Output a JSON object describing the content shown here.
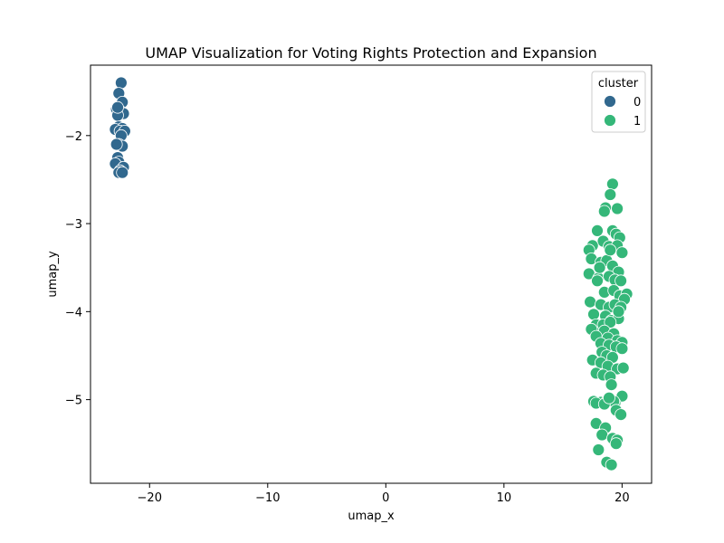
{
  "chart_data": {
    "type": "scatter",
    "title": "UMAP Visualization for Voting Rights Protection and Expansion",
    "xlabel": "umap_x",
    "ylabel": "umap_y",
    "xlim": [
      -25,
      22.5
    ],
    "ylim": [
      -5.95,
      -1.2
    ],
    "xticks": [
      -20,
      -10,
      0,
      10,
      20
    ],
    "yticks": [
      -5,
      -4,
      -3,
      -2
    ],
    "grid": false,
    "legend": {
      "title": "cluster",
      "placement": "top-right"
    },
    "colors": {
      "0": "#31688e",
      "1": "#35b779"
    },
    "series": [
      {
        "name": "0",
        "points": [
          [
            -22.4,
            -1.4
          ],
          [
            -22.6,
            -1.52
          ],
          [
            -22.3,
            -1.62
          ],
          [
            -22.8,
            -1.7
          ],
          [
            -22.5,
            -1.72
          ],
          [
            -22.2,
            -1.75
          ],
          [
            -22.7,
            -1.77
          ],
          [
            -22.6,
            -1.9
          ],
          [
            -22.3,
            -1.92
          ],
          [
            -22.9,
            -1.93
          ],
          [
            -22.5,
            -1.95
          ],
          [
            -22.1,
            -1.95
          ],
          [
            -22.4,
            -2.0
          ],
          [
            -22.6,
            -2.1
          ],
          [
            -22.3,
            -2.12
          ],
          [
            -22.8,
            -2.1
          ],
          [
            -22.7,
            -2.25
          ],
          [
            -22.6,
            -2.3
          ],
          [
            -22.9,
            -2.32
          ],
          [
            -22.2,
            -2.36
          ],
          [
            -22.5,
            -2.4
          ],
          [
            -22.6,
            -2.42
          ],
          [
            -22.3,
            -2.42
          ],
          [
            -22.7,
            -1.68
          ]
        ]
      },
      {
        "name": "1",
        "points": [
          [
            19.2,
            -2.55
          ],
          [
            19.0,
            -2.67
          ],
          [
            18.6,
            -2.82
          ],
          [
            19.6,
            -2.83
          ],
          [
            18.5,
            -2.86
          ],
          [
            17.9,
            -3.08
          ],
          [
            19.2,
            -3.08
          ],
          [
            19.5,
            -3.12
          ],
          [
            18.4,
            -3.2
          ],
          [
            19.8,
            -3.16
          ],
          [
            17.5,
            -3.25
          ],
          [
            17.2,
            -3.3
          ],
          [
            18.9,
            -3.26
          ],
          [
            19.6,
            -3.25
          ],
          [
            20.0,
            -3.33
          ],
          [
            17.4,
            -3.4
          ],
          [
            18.2,
            -3.44
          ],
          [
            18.7,
            -3.42
          ],
          [
            19.2,
            -3.48
          ],
          [
            19.7,
            -3.55
          ],
          [
            17.2,
            -3.57
          ],
          [
            18.0,
            -3.62
          ],
          [
            18.9,
            -3.6
          ],
          [
            19.4,
            -3.64
          ],
          [
            19.9,
            -3.65
          ],
          [
            17.9,
            -3.65
          ],
          [
            18.5,
            -3.78
          ],
          [
            19.3,
            -3.76
          ],
          [
            19.8,
            -3.82
          ],
          [
            20.4,
            -3.8
          ],
          [
            20.2,
            -3.86
          ],
          [
            17.3,
            -3.89
          ],
          [
            18.2,
            -3.92
          ],
          [
            18.9,
            -3.95
          ],
          [
            19.4,
            -3.92
          ],
          [
            19.9,
            -3.95
          ],
          [
            17.6,
            -4.03
          ],
          [
            18.6,
            -4.05
          ],
          [
            19.1,
            -4.1
          ],
          [
            19.7,
            -4.08
          ],
          [
            17.8,
            -4.15
          ],
          [
            18.4,
            -4.15
          ],
          [
            19.0,
            -4.12
          ],
          [
            17.4,
            -4.2
          ],
          [
            18.5,
            -4.22
          ],
          [
            19.3,
            -4.25
          ],
          [
            17.8,
            -4.28
          ],
          [
            18.8,
            -4.3
          ],
          [
            19.6,
            -4.33
          ],
          [
            20.0,
            -4.35
          ],
          [
            18.2,
            -4.36
          ],
          [
            18.9,
            -4.38
          ],
          [
            19.5,
            -4.4
          ],
          [
            20.0,
            -4.42
          ],
          [
            18.3,
            -4.46
          ],
          [
            18.7,
            -4.5
          ],
          [
            19.2,
            -4.52
          ],
          [
            17.5,
            -4.55
          ],
          [
            18.2,
            -4.58
          ],
          [
            18.8,
            -4.62
          ],
          [
            19.6,
            -4.65
          ],
          [
            20.1,
            -4.64
          ],
          [
            17.8,
            -4.7
          ],
          [
            18.4,
            -4.72
          ],
          [
            19.0,
            -4.74
          ],
          [
            19.1,
            -4.83
          ],
          [
            20.0,
            -4.96
          ],
          [
            17.6,
            -5.02
          ],
          [
            18.2,
            -5.03
          ],
          [
            18.7,
            -5.02
          ],
          [
            19.4,
            -5.04
          ],
          [
            19.3,
            -5.02
          ],
          [
            17.8,
            -5.04
          ],
          [
            19.5,
            -5.12
          ],
          [
            19.9,
            -5.17
          ],
          [
            17.8,
            -5.27
          ],
          [
            18.6,
            -5.32
          ],
          [
            18.3,
            -5.4
          ],
          [
            19.2,
            -5.44
          ],
          [
            19.6,
            -5.46
          ],
          [
            19.5,
            -5.5
          ],
          [
            18.0,
            -5.57
          ],
          [
            18.7,
            -5.71
          ],
          [
            19.1,
            -5.74
          ],
          [
            18.5,
            -5.05
          ],
          [
            18.9,
            -4.98
          ],
          [
            19.7,
            -4.0
          ],
          [
            18.1,
            -3.5
          ],
          [
            19.0,
            -3.3
          ]
        ]
      }
    ]
  }
}
